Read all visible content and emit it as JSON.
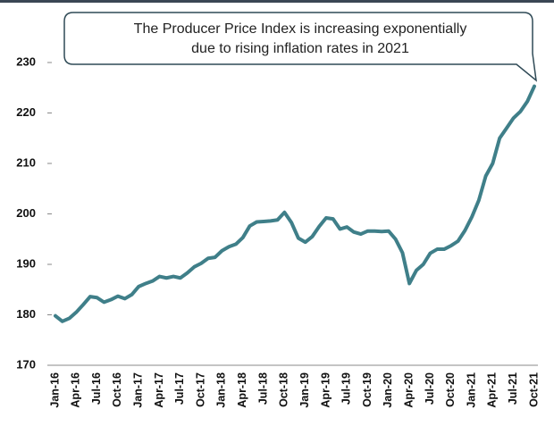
{
  "chart_data": {
    "type": "line",
    "annotation": [
      "The Producer Price Index is increasing exponentially",
      "due to rising inflation rates in 2021"
    ],
    "categories": [
      "Jan-16",
      null,
      null,
      "Apr-16",
      null,
      null,
      "Jul-16",
      null,
      null,
      "Oct-16",
      null,
      null,
      "Jan-17",
      null,
      null,
      "Apr-17",
      null,
      null,
      "Jul-17",
      null,
      null,
      "Oct-17",
      null,
      null,
      "Jan-18",
      null,
      null,
      "Apr-18",
      null,
      null,
      "Jul-18",
      null,
      null,
      "Oct-18",
      null,
      null,
      "Jan-19",
      null,
      null,
      "Apr-19",
      null,
      null,
      "Jul-19",
      null,
      null,
      "Oct-19",
      null,
      null,
      "Jan-20",
      null,
      null,
      "Apr-20",
      null,
      null,
      "Jul-20",
      null,
      null,
      "Oct-20",
      null,
      null,
      "Jan-21",
      null,
      null,
      "Apr-21",
      null,
      null,
      "Jul-21",
      null,
      null,
      "Oct-21"
    ],
    "series": [
      {
        "color": "#3f7f89",
        "values": [
          179.8,
          178.7,
          179.3,
          180.5,
          182,
          183.6,
          183.4,
          182.5,
          183,
          183.7,
          183.2,
          184,
          185.6,
          186.2,
          186.7,
          187.6,
          187.3,
          187.6,
          187.3,
          188.3,
          189.5,
          190.2,
          191.2,
          191.4,
          192.7,
          193.5,
          194,
          195.3,
          197.6,
          198.4,
          198.5,
          198.6,
          198.8,
          200.3,
          198.3,
          195.2,
          194.4,
          195.5,
          197.5,
          199.2,
          199,
          197,
          197.4,
          196.4,
          196,
          196.6,
          196.6,
          196.5,
          196.6,
          195,
          192.3,
          186.2,
          188.8,
          190,
          192.2,
          193,
          193,
          193.7,
          194.6,
          196.7,
          199.4,
          202.7,
          207.5,
          210,
          215,
          217,
          219,
          220.3,
          222.3,
          225.3
        ]
      }
    ],
    "ylim": [
      170,
      230
    ],
    "yticks": [
      170,
      180,
      190,
      200,
      210,
      220,
      230
    ]
  }
}
